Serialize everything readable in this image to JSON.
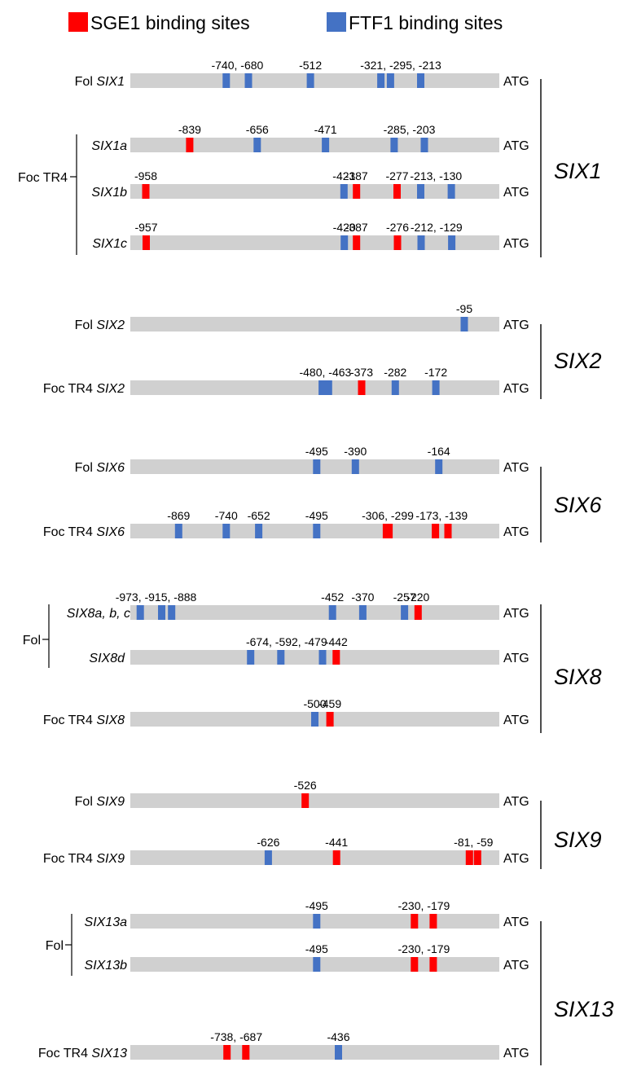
{
  "legend": {
    "sge1": {
      "label": "SGE1 binding sites",
      "color": "#ff0000"
    },
    "ftf1": {
      "label": "FTF1 binding sites",
      "color": "#4472c4"
    }
  },
  "colors": {
    "bar": "#d0d0d0",
    "sge1": "#ff0000",
    "ftf1": "#4472c4",
    "line": "#000000"
  },
  "atg_text": "ATG",
  "scale": {
    "promoter_start": -1000,
    "promoter_end": 0
  },
  "rows": [
    {
      "id": "fol-six1",
      "prefix": "Fol ",
      "gene": "SIX1",
      "sites": [
        {
          "pos": -740,
          "type": "ftf1"
        },
        {
          "pos": -680,
          "type": "ftf1"
        },
        {
          "pos": -512,
          "type": "ftf1"
        },
        {
          "pos": -321,
          "type": "ftf1"
        },
        {
          "pos": -295,
          "type": "ftf1"
        },
        {
          "pos": -213,
          "type": "ftf1"
        }
      ],
      "labels": [
        "-740, -680",
        "-512",
        "-321, -295, -213"
      ]
    },
    {
      "id": "foc-six1a",
      "prefix": "",
      "gene": "SIX1a",
      "sites": [
        {
          "pos": -839,
          "type": "sge1"
        },
        {
          "pos": -656,
          "type": "ftf1"
        },
        {
          "pos": -471,
          "type": "ftf1"
        },
        {
          "pos": -285,
          "type": "ftf1"
        },
        {
          "pos": -203,
          "type": "ftf1"
        }
      ],
      "labels": [
        "-839",
        "-656",
        "-471",
        "-285, -203"
      ]
    },
    {
      "id": "foc-six1b",
      "prefix": "",
      "gene": "SIX1b",
      "sites": [
        {
          "pos": -958,
          "type": "sge1"
        },
        {
          "pos": -421,
          "type": "ftf1"
        },
        {
          "pos": -387,
          "type": "sge1"
        },
        {
          "pos": -277,
          "type": "sge1"
        },
        {
          "pos": -213,
          "type": "ftf1"
        },
        {
          "pos": -130,
          "type": "ftf1"
        }
      ],
      "labels": [
        "-958",
        "-421",
        "-387",
        "-277",
        "-213, -130"
      ]
    },
    {
      "id": "foc-six1c",
      "prefix": "",
      "gene": "SIX1c",
      "sites": [
        {
          "pos": -957,
          "type": "sge1"
        },
        {
          "pos": -420,
          "type": "ftf1"
        },
        {
          "pos": -387,
          "type": "sge1"
        },
        {
          "pos": -276,
          "type": "sge1"
        },
        {
          "pos": -212,
          "type": "ftf1"
        },
        {
          "pos": -129,
          "type": "ftf1"
        }
      ],
      "labels": [
        "-957",
        "-420",
        "-387",
        "-276",
        "-212, -129"
      ]
    },
    {
      "id": "fol-six2",
      "prefix": "Fol ",
      "gene": "SIX2",
      "sites": [
        {
          "pos": -95,
          "type": "ftf1"
        }
      ],
      "labels": [
        "-95"
      ]
    },
    {
      "id": "foc-six2",
      "prefix": "Foc TR4 ",
      "gene": "SIX2",
      "sites": [
        {
          "pos": -480,
          "type": "ftf1"
        },
        {
          "pos": -463,
          "type": "ftf1"
        },
        {
          "pos": -373,
          "type": "sge1"
        },
        {
          "pos": -282,
          "type": "ftf1"
        },
        {
          "pos": -172,
          "type": "ftf1"
        }
      ],
      "labels": [
        "-480, -463",
        "-373",
        "-282",
        "-172"
      ]
    },
    {
      "id": "fol-six6",
      "prefix": "Fol ",
      "gene": "SIX6",
      "sites": [
        {
          "pos": -495,
          "type": "ftf1"
        },
        {
          "pos": -390,
          "type": "ftf1"
        },
        {
          "pos": -164,
          "type": "ftf1"
        }
      ],
      "labels": [
        "-495",
        "-390",
        "-164"
      ]
    },
    {
      "id": "foc-six6",
      "prefix": "Foc TR4 ",
      "gene": "SIX6",
      "sites": [
        {
          "pos": -869,
          "type": "ftf1"
        },
        {
          "pos": -740,
          "type": "ftf1"
        },
        {
          "pos": -652,
          "type": "ftf1"
        },
        {
          "pos": -495,
          "type": "ftf1"
        },
        {
          "pos": -306,
          "type": "sge1"
        },
        {
          "pos": -299,
          "type": "sge1"
        },
        {
          "pos": -173,
          "type": "sge1"
        },
        {
          "pos": -139,
          "type": "sge1"
        }
      ],
      "labels": [
        "-869",
        "-740",
        "-652",
        "-495",
        "-306, -299",
        "-173, -139"
      ]
    },
    {
      "id": "fol-six8abc",
      "prefix": "",
      "gene": "SIX8a, b, c",
      "sites": [
        {
          "pos": -973,
          "type": "ftf1"
        },
        {
          "pos": -915,
          "type": "ftf1"
        },
        {
          "pos": -888,
          "type": "ftf1"
        },
        {
          "pos": -452,
          "type": "ftf1"
        },
        {
          "pos": -370,
          "type": "ftf1"
        },
        {
          "pos": -257,
          "type": "ftf1"
        },
        {
          "pos": -220,
          "type": "sge1"
        }
      ],
      "labels": [
        "-973, -915, -888",
        "-452",
        "-370",
        "-257",
        "-220"
      ]
    },
    {
      "id": "fol-six8d",
      "prefix": "",
      "gene": "SIX8d",
      "sites": [
        {
          "pos": -674,
          "type": "ftf1"
        },
        {
          "pos": -592,
          "type": "ftf1"
        },
        {
          "pos": -479,
          "type": "ftf1"
        },
        {
          "pos": -442,
          "type": "sge1"
        }
      ],
      "labels": [
        "-674, -592, -479",
        "-442"
      ]
    },
    {
      "id": "foc-six8",
      "prefix": "Foc TR4 ",
      "gene": "SIX8",
      "sites": [
        {
          "pos": -500,
          "type": "ftf1"
        },
        {
          "pos": -459,
          "type": "sge1"
        }
      ],
      "labels": [
        "-500",
        "-459"
      ]
    },
    {
      "id": "fol-six9",
      "prefix": "Fol ",
      "gene": "SIX9",
      "sites": [
        {
          "pos": -526,
          "type": "sge1"
        }
      ],
      "labels": [
        "-526"
      ]
    },
    {
      "id": "foc-six9",
      "prefix": "Foc TR4 ",
      "gene": "SIX9",
      "sites": [
        {
          "pos": -626,
          "type": "ftf1"
        },
        {
          "pos": -441,
          "type": "sge1"
        },
        {
          "pos": -81,
          "type": "sge1"
        },
        {
          "pos": -59,
          "type": "sge1"
        }
      ],
      "labels": [
        "-626",
        "-441",
        "-81, -59"
      ]
    },
    {
      "id": "fol-six13a",
      "prefix": "",
      "gene": "SIX13a",
      "sites": [
        {
          "pos": -495,
          "type": "ftf1"
        },
        {
          "pos": -230,
          "type": "sge1"
        },
        {
          "pos": -179,
          "type": "sge1"
        }
      ],
      "labels": [
        "-495",
        "-230, -179"
      ]
    },
    {
      "id": "fol-six13b",
      "prefix": "",
      "gene": "SIX13b",
      "sites": [
        {
          "pos": -495,
          "type": "ftf1"
        },
        {
          "pos": -230,
          "type": "sge1"
        },
        {
          "pos": -179,
          "type": "sge1"
        }
      ],
      "labels": [
        "-495",
        "-230, -179"
      ]
    },
    {
      "id": "foc-six13",
      "prefix": "Foc TR4 ",
      "gene": "SIX13",
      "sites": [
        {
          "pos": -738,
          "type": "sge1"
        },
        {
          "pos": -687,
          "type": "sge1"
        },
        {
          "pos": -436,
          "type": "ftf1"
        }
      ],
      "labels": [
        "-738, -687",
        "-436"
      ]
    }
  ],
  "bracket_labels": [
    {
      "id": "foc-tr4-six1",
      "text": "Foc TR4"
    },
    {
      "id": "fol-six8",
      "text": "Fol"
    },
    {
      "id": "fol-six13",
      "text": "Fol"
    }
  ],
  "groups": [
    {
      "id": "six1",
      "title": "SIX1"
    },
    {
      "id": "six2",
      "title": "SIX2"
    },
    {
      "id": "six6",
      "title": "SIX6"
    },
    {
      "id": "six8",
      "title": "SIX8"
    },
    {
      "id": "six9",
      "title": "SIX9"
    },
    {
      "id": "six13",
      "title": "SIX13"
    }
  ]
}
